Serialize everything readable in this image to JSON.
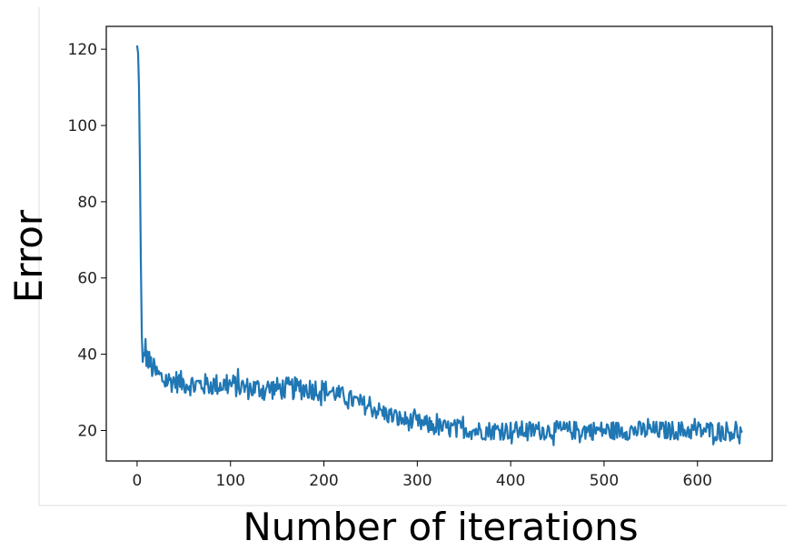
{
  "chart_data": {
    "type": "line",
    "title": "",
    "xlabel": "Number of iterations",
    "ylabel": "Error",
    "xlim": [
      -33,
      680
    ],
    "ylim": [
      12,
      126
    ],
    "xticks": [
      0,
      100,
      200,
      300,
      400,
      500,
      600
    ],
    "yticks": [
      20,
      40,
      60,
      80,
      100,
      120
    ],
    "grid": false,
    "series": [
      {
        "color": "#1f77b4",
        "x": [
          0,
          1,
          2,
          3,
          4,
          5,
          6,
          8,
          10,
          12,
          15,
          20,
          25,
          30,
          40,
          50,
          60,
          70,
          80,
          90,
          100,
          110,
          120,
          130,
          140,
          150,
          160,
          170,
          180,
          190,
          200,
          210,
          220,
          230,
          240,
          250,
          260,
          270,
          280,
          290,
          300,
          310,
          320,
          330,
          340,
          350,
          360,
          370,
          380,
          390,
          400,
          410,
          420,
          430,
          440,
          450,
          460,
          470,
          480,
          490,
          500,
          510,
          520,
          530,
          540,
          550,
          560,
          570,
          580,
          590,
          600,
          610,
          620,
          630,
          640,
          648
        ],
        "y": [
          121,
          119,
          110,
          90,
          65,
          45,
          38,
          42,
          40,
          38,
          37,
          35,
          34,
          33,
          33,
          32.5,
          32,
          32,
          32,
          32,
          32,
          31.5,
          31,
          31,
          31,
          31,
          31,
          31,
          31,
          31,
          30.5,
          30,
          29,
          28,
          27,
          26,
          25,
          24,
          23,
          22.5,
          22,
          21.5,
          21,
          20.5,
          20.5,
          20.5,
          20,
          20,
          20,
          20,
          20,
          20,
          20,
          20,
          20,
          20,
          20,
          20,
          20,
          20,
          20,
          20,
          20,
          20,
          20,
          20,
          20,
          20,
          20,
          20,
          20,
          20,
          20,
          20,
          19.5,
          19.5
        ],
        "noise_amplitude": [
          0,
          0,
          0,
          0,
          0,
          0,
          0,
          4,
          4,
          3.5,
          3.5,
          3,
          3,
          3,
          3,
          3,
          3,
          3,
          3,
          3,
          3,
          3,
          3,
          3,
          3,
          3,
          3,
          3,
          3,
          3,
          3,
          2.5,
          2.5,
          2.5,
          2.5,
          2.5,
          2.5,
          2.5,
          2.5,
          2.5,
          2.5,
          2.5,
          2.5,
          2.5,
          2.5,
          2.5,
          2.5,
          2.5,
          2.5,
          2.5,
          2.5,
          2.5,
          2.5,
          2.5,
          2.5,
          2.5,
          2.5,
          2.5,
          2.5,
          2.5,
          2.5,
          2.5,
          2.5,
          2.5,
          2.5,
          2.5,
          2.5,
          2.5,
          2.5,
          2.5,
          2.5,
          2.5,
          2.5,
          2.5,
          2.5,
          2.5
        ]
      }
    ]
  }
}
